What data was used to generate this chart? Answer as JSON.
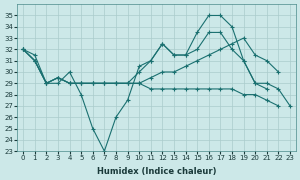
{
  "xlabel": "Humidex (Indice chaleur)",
  "bg_color": "#cce8e8",
  "grid_color": "#aacccc",
  "color": "#1a7070",
  "ylim": [
    23,
    36
  ],
  "yticks": [
    23,
    24,
    25,
    26,
    27,
    28,
    29,
    30,
    31,
    32,
    33,
    34,
    35
  ],
  "xticks": [
    0,
    1,
    2,
    3,
    4,
    5,
    6,
    7,
    8,
    9,
    10,
    11,
    12,
    13,
    14,
    15,
    16,
    17,
    18,
    19,
    20,
    21,
    22,
    23
  ],
  "s1_x": [
    0,
    1,
    2,
    3,
    4,
    5,
    6,
    7,
    8,
    9,
    10,
    11,
    12,
    13,
    14,
    15,
    16,
    17,
    18,
    19,
    20,
    21
  ],
  "s1_y": [
    32,
    31.5,
    29,
    29,
    30,
    28,
    25,
    23,
    26,
    27.5,
    30.5,
    31,
    32.5,
    31.5,
    31.5,
    33.5,
    35,
    35,
    34,
    31,
    29,
    28.5
  ],
  "s2_x": [
    0,
    1,
    2,
    3,
    4,
    5,
    6,
    7,
    8,
    9,
    10,
    11,
    12,
    13,
    14,
    15,
    16,
    17,
    18,
    19,
    20,
    21,
    22,
    23
  ],
  "s2_y": [
    32,
    31,
    29,
    29.5,
    29,
    29,
    29,
    29,
    29,
    29,
    30,
    31,
    32.5,
    31.5,
    31.5,
    32,
    33.5,
    33.5,
    32,
    31,
    29,
    29,
    28.5,
    27
  ],
  "s3_x": [
    0,
    1,
    2,
    3,
    4,
    5,
    6,
    7,
    8,
    9,
    10,
    11,
    12,
    13,
    14,
    15,
    16,
    17,
    18,
    19,
    20,
    21,
    22,
    23
  ],
  "s3_y": [
    32,
    31,
    29,
    29.5,
    29,
    29,
    29,
    29,
    29,
    29,
    29,
    29.5,
    30,
    30,
    30.5,
    31,
    31.5,
    32,
    32.5,
    33,
    31.5,
    31,
    30,
    null
  ],
  "s4_x": [
    0,
    1,
    2,
    3,
    4,
    5,
    6,
    7,
    8,
    9,
    10,
    11,
    12,
    13,
    14,
    15,
    16,
    17,
    18,
    19,
    20,
    21,
    22,
    23
  ],
  "s4_y": [
    32,
    31,
    29,
    29.5,
    29,
    29,
    29,
    29,
    29,
    29,
    29,
    28.5,
    28.5,
    28.5,
    28.5,
    28.5,
    28.5,
    28.5,
    28.5,
    28,
    28,
    27.5,
    27,
    null
  ]
}
